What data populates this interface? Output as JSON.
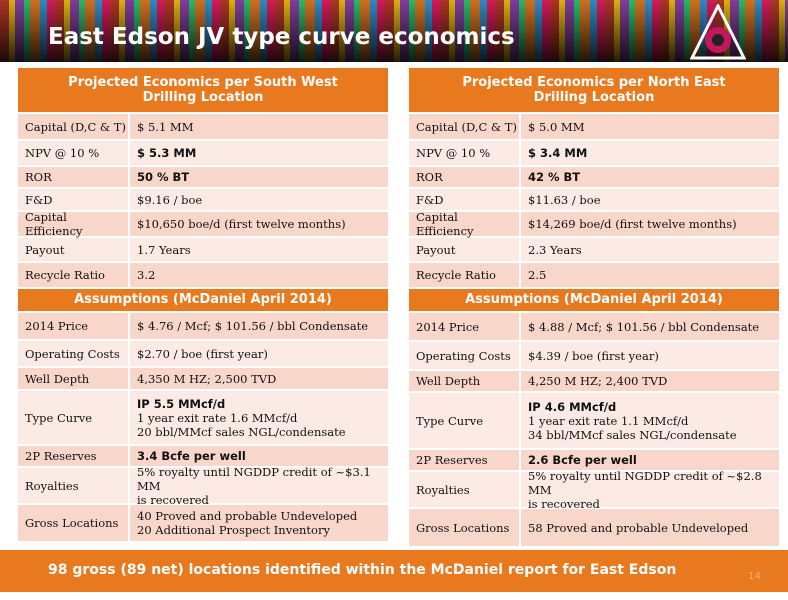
{
  "title": "East Edson JV type curve economics",
  "left": {
    "header": [
      "Projected Economics per  South West",
      "Drilling Location"
    ],
    "rows": [
      [
        "Capital (D,C & T)",
        "$ 5.1 MM"
      ],
      [
        "NPV @ 10 %",
        "$ 5.3 MM"
      ],
      [
        "ROR",
        "50 % BT"
      ],
      [
        "F&D",
        "$9.16 / boe"
      ],
      [
        "Capital Efficiency",
        "$10,650 boe/d  (first twelve months)"
      ],
      [
        "Payout",
        "1.7  Years"
      ],
      [
        "Recycle Ratio",
        "3.2"
      ]
    ],
    "assumptions_header": "Assumptions (McDaniel April 2014)",
    "assumptions": [
      [
        "2014 Price",
        [
          "$ 4.76 / Mcf; $ 101.56 / bbl Condensate"
        ]
      ],
      [
        "Operating Costs",
        [
          "$2.70 / boe  (first  year)"
        ]
      ],
      [
        "Well Depth",
        [
          "4,350 M HZ; 2,500 TVD"
        ]
      ],
      [
        "Type Curve",
        [
          "IP 5.5 MMcf/d",
          "1 year exit rate 1.6 MMcf/d",
          "20 bbl/MMcf sales NGL/condensate"
        ]
      ],
      [
        "2P Reserves",
        [
          "3.4 Bcfe per well"
        ]
      ],
      [
        "Royalties",
        [
          "5% royalty until NGDDP credit of ~$3.1 MM",
          "is recovered"
        ]
      ],
      [
        "Gross Locations",
        [
          "40 Proved and probable Undeveloped",
          "20 Additional Prospect Inventory"
        ]
      ]
    ]
  },
  "right": {
    "header": [
      "Projected Economics per  North East",
      "Drilling Location"
    ],
    "rows": [
      [
        "Capital (D,C & T)",
        "$ 5.0 MM"
      ],
      [
        "NPV @ 10 %",
        "$ 3.4 MM"
      ],
      [
        "ROR",
        "42 % BT"
      ],
      [
        "F&D",
        "$11.63 / boe"
      ],
      [
        "Capital Efficiency",
        "$14,269 boe/d  (first twelve months)"
      ],
      [
        "Payout",
        "  2.3 Years"
      ],
      [
        "Recycle Ratio",
        "2.5"
      ]
    ],
    "assumptions_header": "Assumptions (McDaniel April 2014)",
    "assumptions": [
      [
        "2014 Price",
        [
          "$ 4.88 / Mcf; $ 101.56 / bbl Condensate"
        ]
      ],
      [
        "Operating Costs",
        [
          "$4.39 / boe  (first  year)"
        ]
      ],
      [
        "Well Depth",
        [
          "4,250 M HZ; 2,400 TVD"
        ]
      ],
      [
        "Type Curve",
        [
          "IP 4.6 MMcf/d",
          "1 year exit rate 1.1 MMcf/d",
          "34 bbl/MMcf sales NGL/condensate"
        ]
      ],
      [
        "2P Reserves",
        [
          "2.6 Bcfe per well"
        ]
      ],
      [
        "Royalties",
        [
          "5% royalty until NGDDP credit of ~$2.8 MM",
          "is recovered"
        ]
      ],
      [
        "Gross Locations",
        [
          "58 Proved and probable Undeveloped"
        ]
      ]
    ]
  },
  "footer": "98 gross (89 net) locations identified within the McDaniel report for East Edson",
  "page_number": "14"
}
